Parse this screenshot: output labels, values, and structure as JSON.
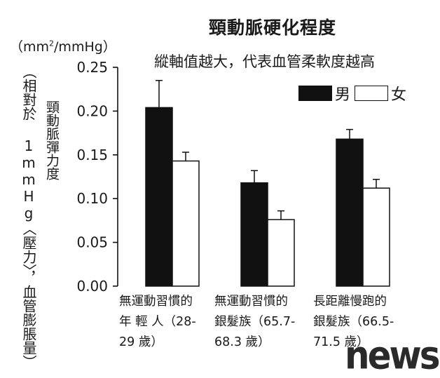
{
  "chart_data": {
    "type": "bar",
    "title": "頸動脈硬化程度",
    "subtitle": "縱軸值越大，代表血管柔軟度越高",
    "ylabel": "頸動脈彈力度",
    "unit_prefix": "（mm",
    "unit_sup": "2",
    "unit_suffix": "/mmHg）",
    "ylabel_note": "（相對於 1mmHg〈壓力〉，血管膨脹量）",
    "ylim": [
      0,
      0.25
    ],
    "yticks": [
      "0.00",
      "0.05",
      "0.10",
      "0.15",
      "0.20",
      "0.25"
    ],
    "categories": [
      "無運動習慣的\n年 輕 人（28-\n29 歲）",
      "無運動習慣的\n銀髮族（65.7-\n68.3 歲）",
      "長距離慢跑的\n銀髮族（66.5-\n71.5 歲）"
    ],
    "series": [
      {
        "name": "男",
        "color": "#111111",
        "values": [
          0.204,
          0.118,
          0.168
        ],
        "errors": [
          0.031,
          0.014,
          0.011
        ]
      },
      {
        "name": "女",
        "color": "#ffffff",
        "values": [
          0.143,
          0.076,
          0.112
        ],
        "errors": [
          0.01,
          0.01,
          0.01
        ]
      }
    ],
    "legend_position": "top-right",
    "grid": false
  },
  "watermark": "news"
}
